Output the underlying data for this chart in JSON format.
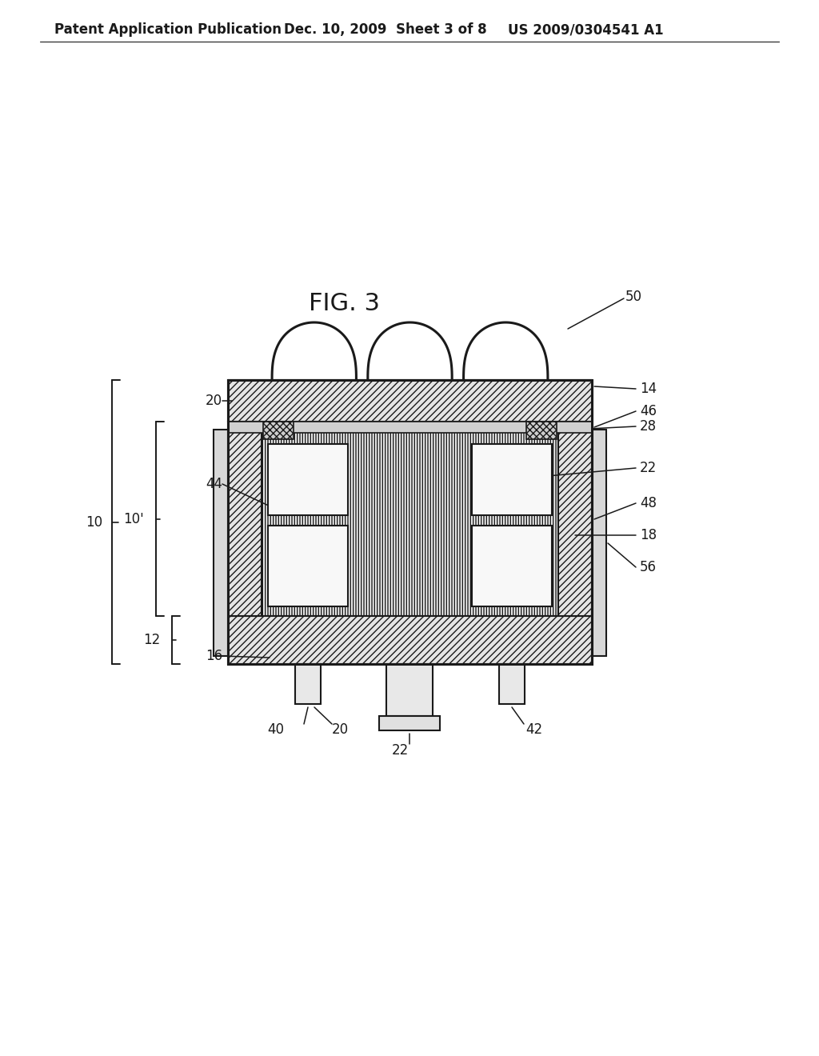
{
  "bg_color": "#ffffff",
  "header_left": "Patent Application Publication",
  "header_mid": "Dec. 10, 2009  Sheet 3 of 8",
  "header_right": "US 2009/0304541 A1",
  "fig_label": "FIG. 3",
  "line_color": "#1a1a1a"
}
